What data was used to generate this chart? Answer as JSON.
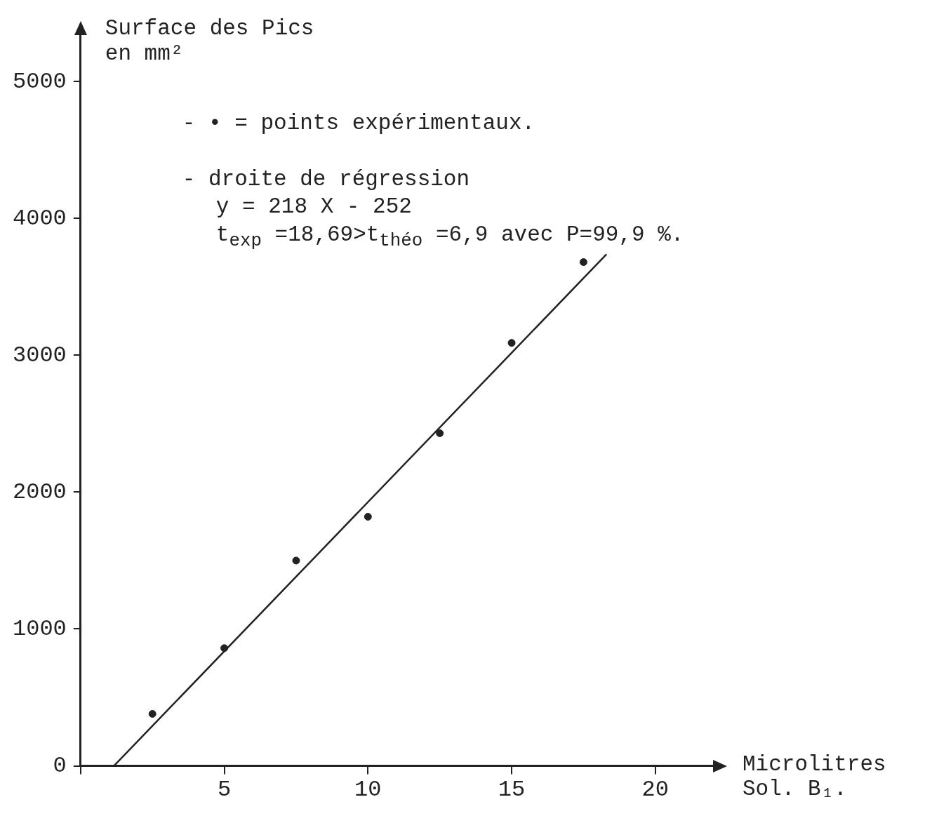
{
  "chart_data": {
    "type": "scatter",
    "ylabel": "Surface des Pics\nen mm²",
    "xlabel": "Microlitres\nSol. B₁.",
    "x": [
      2.5,
      5,
      7.5,
      10,
      12.5,
      15,
      17.5
    ],
    "xlim": [
      0,
      22.3
    ],
    "ylim": [
      0,
      5400
    ],
    "xticks": [
      {
        "value": 0,
        "label": null
      },
      5,
      10,
      15,
      20
    ],
    "yticks": [
      0,
      1000,
      2000,
      3000,
      4000,
      5000
    ],
    "marker": "circle",
    "grid": false,
    "series": [
      {
        "color": "#222222",
        "values": [
          380,
          860,
          1500,
          1820,
          2430,
          3090,
          3680
        ]
      },
      {
        "type": "line",
        "x": [
          1.16,
          18.3
        ],
        "values": [
          0,
          3737
        ],
        "color": "#222222",
        "marker": "none"
      }
    ],
    "annotations": [
      "- • = points expérimentaux.",
      "- droite de régression",
      "y = 218 X - 252",
      "t$_{exp}$ =18,69>t$_{théo}$ =6,9 avec P=99,9 %."
    ]
  }
}
